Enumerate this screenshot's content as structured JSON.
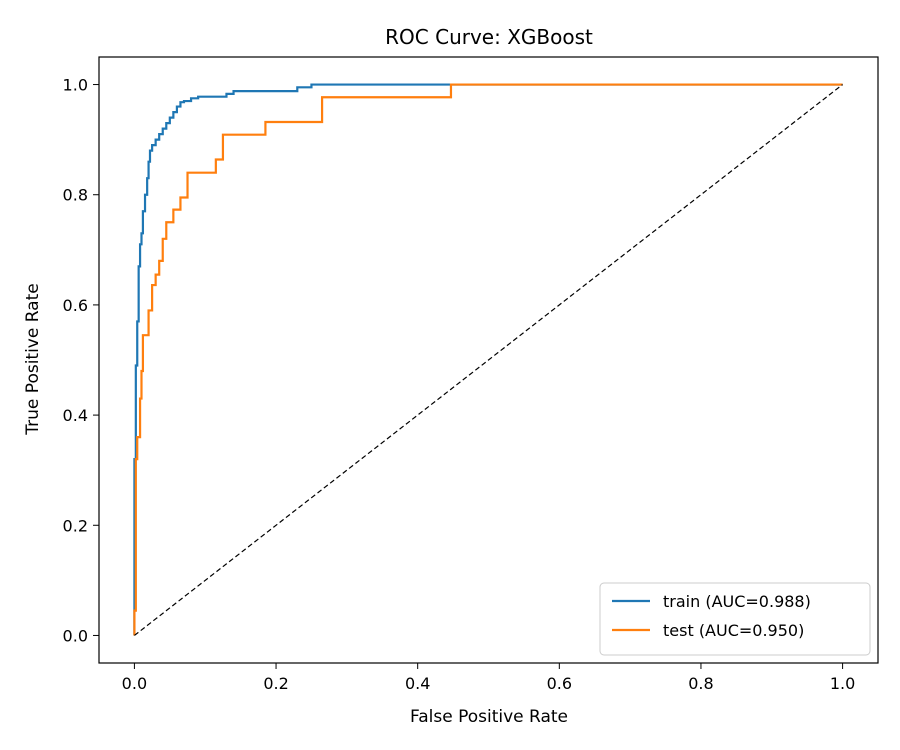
{
  "chart_data": {
    "type": "line",
    "title": "ROC Curve: XGBoost",
    "xlabel": "False Positive Rate",
    "ylabel": "True Positive Rate",
    "xlim": [
      -0.05,
      1.05
    ],
    "ylim": [
      -0.05,
      1.05
    ],
    "xticks": [
      0.0,
      0.2,
      0.4,
      0.6,
      0.8,
      1.0
    ],
    "xtick_labels": [
      "0.0",
      "0.2",
      "0.4",
      "0.6",
      "0.8",
      "1.0"
    ],
    "yticks": [
      0.0,
      0.2,
      0.4,
      0.6,
      0.8,
      1.0
    ],
    "ytick_labels": [
      "0.0",
      "0.2",
      "0.4",
      "0.6",
      "0.8",
      "1.0"
    ],
    "grid": false,
    "legend_position": "lower-right",
    "series": [
      {
        "name": "train (AUC=0.988)",
        "color": "#1f77b4",
        "x": [
          0.0,
          0.0,
          0.002,
          0.002,
          0.004,
          0.004,
          0.006,
          0.006,
          0.008,
          0.008,
          0.01,
          0.01,
          0.012,
          0.012,
          0.015,
          0.015,
          0.018,
          0.018,
          0.02,
          0.02,
          0.022,
          0.022,
          0.025,
          0.025,
          0.03,
          0.03,
          0.035,
          0.035,
          0.04,
          0.04,
          0.045,
          0.045,
          0.05,
          0.05,
          0.055,
          0.055,
          0.06,
          0.06,
          0.065,
          0.065,
          0.07,
          0.07,
          0.08,
          0.08,
          0.09,
          0.09,
          0.13,
          0.13,
          0.14,
          0.14,
          0.23,
          0.23,
          0.25,
          0.25,
          1.0
        ],
        "y": [
          0.0,
          0.32,
          0.32,
          0.49,
          0.49,
          0.57,
          0.57,
          0.67,
          0.67,
          0.71,
          0.71,
          0.73,
          0.73,
          0.77,
          0.77,
          0.8,
          0.8,
          0.83,
          0.83,
          0.86,
          0.86,
          0.88,
          0.88,
          0.89,
          0.89,
          0.9,
          0.9,
          0.91,
          0.91,
          0.92,
          0.92,
          0.93,
          0.93,
          0.94,
          0.94,
          0.95,
          0.95,
          0.96,
          0.96,
          0.968,
          0.968,
          0.97,
          0.97,
          0.975,
          0.975,
          0.978,
          0.978,
          0.983,
          0.983,
          0.988,
          0.988,
          0.995,
          0.995,
          1.0,
          1.0
        ]
      },
      {
        "name": "test (AUC=0.950)",
        "color": "#ff7f0e",
        "x": [
          0.0,
          0.0,
          0.002,
          0.002,
          0.004,
          0.004,
          0.008,
          0.008,
          0.01,
          0.01,
          0.012,
          0.012,
          0.02,
          0.02,
          0.025,
          0.025,
          0.03,
          0.03,
          0.035,
          0.035,
          0.04,
          0.04,
          0.045,
          0.045,
          0.055,
          0.055,
          0.065,
          0.065,
          0.075,
          0.075,
          0.115,
          0.115,
          0.125,
          0.125,
          0.185,
          0.185,
          0.265,
          0.265,
          0.447,
          0.447,
          1.0
        ],
        "y": [
          0.0,
          0.045,
          0.045,
          0.32,
          0.32,
          0.36,
          0.36,
          0.43,
          0.43,
          0.48,
          0.48,
          0.545,
          0.545,
          0.59,
          0.59,
          0.636,
          0.636,
          0.655,
          0.655,
          0.68,
          0.68,
          0.72,
          0.72,
          0.75,
          0.75,
          0.773,
          0.773,
          0.795,
          0.795,
          0.84,
          0.84,
          0.864,
          0.864,
          0.909,
          0.909,
          0.932,
          0.932,
          0.977,
          0.977,
          1.0,
          1.0
        ]
      },
      {
        "name": "",
        "color": "#000000",
        "dashed": true,
        "x": [
          0.0,
          1.0
        ],
        "y": [
          0.0,
          1.0
        ]
      }
    ]
  }
}
